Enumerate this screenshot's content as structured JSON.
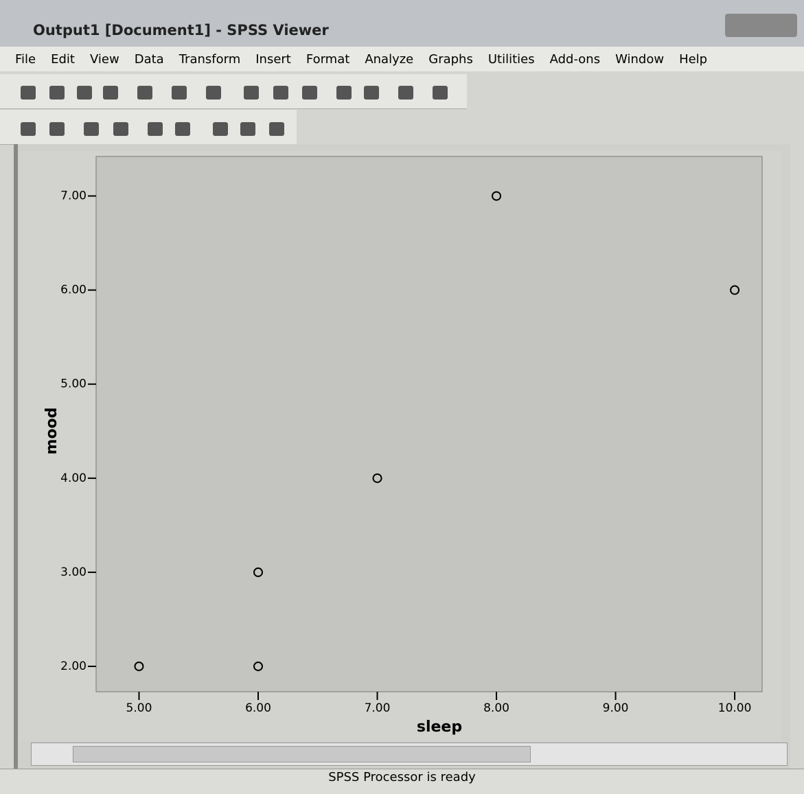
{
  "window": {
    "title": "Output1 [Document1] - SPSS Viewer",
    "menu": [
      "File",
      "Edit",
      "View",
      "Data",
      "Transform",
      "Insert",
      "Format",
      "Analyze",
      "Graphs",
      "Utilities",
      "Add-ons",
      "Window",
      "Help"
    ],
    "status": "SPSS Processor is ready"
  },
  "chart_data": {
    "type": "scatter",
    "x_label": "sleep",
    "y_label": "mood",
    "series": [
      {
        "name": "mood",
        "color": "#000000",
        "x": [
          5,
          6,
          6,
          7,
          8,
          10
        ],
        "values": [
          2,
          2,
          3,
          4,
          7,
          6
        ]
      }
    ],
    "xlim": [
      4.64,
      10.23
    ],
    "ylim": [
      1.73,
      7.42
    ],
    "xticks": [
      {
        "value": 5,
        "label": "5.00"
      },
      {
        "value": 6,
        "label": "6.00"
      },
      {
        "value": 7,
        "label": "7.00"
      },
      {
        "value": 8,
        "label": "8.00"
      },
      {
        "value": 9,
        "label": "9.00"
      },
      {
        "value": 10,
        "label": "10.00"
      }
    ],
    "yticks": [
      {
        "value": 2,
        "label": "2.00"
      },
      {
        "value": 3,
        "label": "3.00"
      },
      {
        "value": 4,
        "label": "4.00"
      },
      {
        "value": 5,
        "label": "5.00"
      },
      {
        "value": 6,
        "label": "6.00"
      },
      {
        "value": 7,
        "label": "7.00"
      }
    ]
  }
}
